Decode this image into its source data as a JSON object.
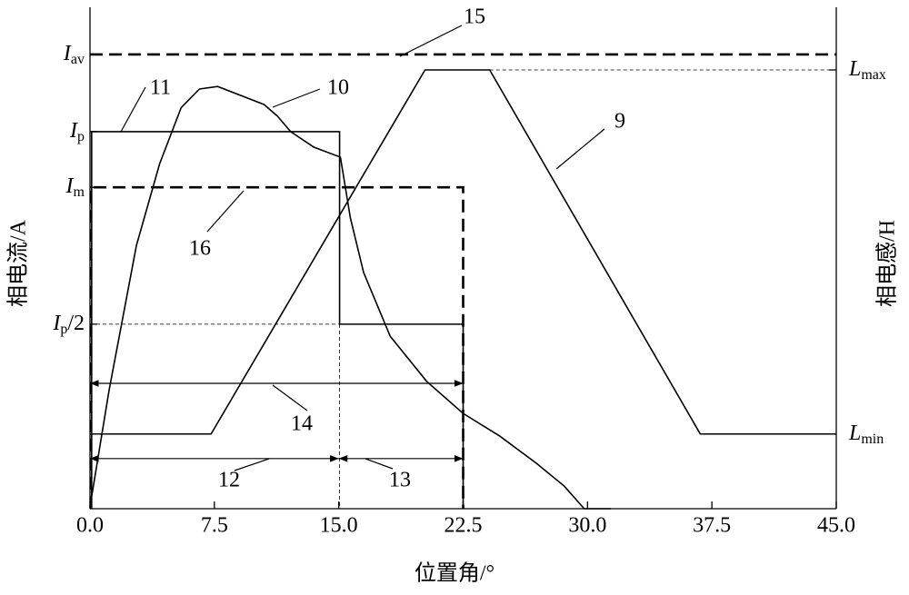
{
  "chart_data": {
    "type": "line",
    "xlabel": "位置角/°",
    "ylabel": "相电流/A",
    "y2label": "相电感/H",
    "xlim": [
      0,
      45
    ],
    "xticks": [
      {
        "value": 0,
        "label": "0.0"
      },
      {
        "value": 7.5,
        "label": "7.5"
      },
      {
        "value": 15,
        "label": "15.0"
      },
      {
        "value": 22.5,
        "label": "22.5"
      },
      {
        "value": 30,
        "label": "30.0"
      },
      {
        "value": 37.5,
        "label": "37.5"
      },
      {
        "value": 45,
        "label": "45.0"
      }
    ],
    "ylim": [
      0,
      100
    ],
    "yticks": [
      {
        "value": 90.6,
        "label": "I",
        "sub": "av"
      },
      {
        "value": 75.2,
        "label": "I",
        "sub": "p"
      },
      {
        "value": 64.1,
        "label": "I",
        "sub": "m"
      },
      {
        "value": 36.8,
        "label": "I",
        "sub": "p",
        "suffix": "/2"
      }
    ],
    "y2lim": [
      0,
      100
    ],
    "y2ticks": [
      {
        "value": 87.5,
        "label": "L",
        "sub": "max"
      },
      {
        "value": 14.9,
        "label": "L",
        "sub": "min"
      }
    ],
    "series": [
      {
        "name": "9",
        "axis": "y2",
        "color": "#000000",
        "dashed": false,
        "x": [
          0,
          7.3,
          20.2,
          24.1,
          36.8,
          45
        ],
        "values": [
          14.9,
          14.9,
          87.5,
          87.5,
          14.9,
          14.9
        ]
      },
      {
        "name": "10",
        "color": "#000000",
        "dashed": false,
        "x": [
          0,
          1.15,
          2.8,
          4.2,
          5.5,
          6.6,
          7.7,
          9.1,
          10.5,
          11.3,
          12.1,
          13.5,
          15.1,
          15.7,
          16.5,
          18.1,
          20.3,
          22.5,
          24.7,
          26.9,
          28.6,
          29.8,
          31.4
        ],
        "values": [
          0.4,
          23.6,
          52.5,
          68.8,
          80,
          83.7,
          84.2,
          82.4,
          80.6,
          78.3,
          75.2,
          72.1,
          70.1,
          58,
          47.1,
          34.4,
          25.4,
          19,
          14.5,
          9.1,
          4.5,
          0,
          0
        ]
      },
      {
        "name": "11",
        "color": "#000000",
        "dashed": false,
        "x": [
          0.1,
          0.1,
          15.05,
          15.05,
          22.5,
          22.5
        ],
        "values": [
          0,
          75.2,
          75.2,
          36.8,
          36.8,
          0
        ]
      },
      {
        "name": "15",
        "color": "#000000",
        "dashed": true,
        "x": [
          0,
          45
        ],
        "values": [
          90.6,
          90.6
        ]
      },
      {
        "name": "16",
        "color": "#000000",
        "dashed": true,
        "x": [
          0.05,
          0.05,
          22.5,
          22.5
        ],
        "values": [
          0,
          64.1,
          64.1,
          0
        ]
      }
    ],
    "dimensions": [
      {
        "label": "14",
        "from": 0,
        "to": 22.5,
        "y": 25
      },
      {
        "label": "12",
        "from": 0,
        "to": 15,
        "y": 10
      },
      {
        "label": "13",
        "from": 15,
        "to": 22.5,
        "y": 10
      }
    ]
  }
}
